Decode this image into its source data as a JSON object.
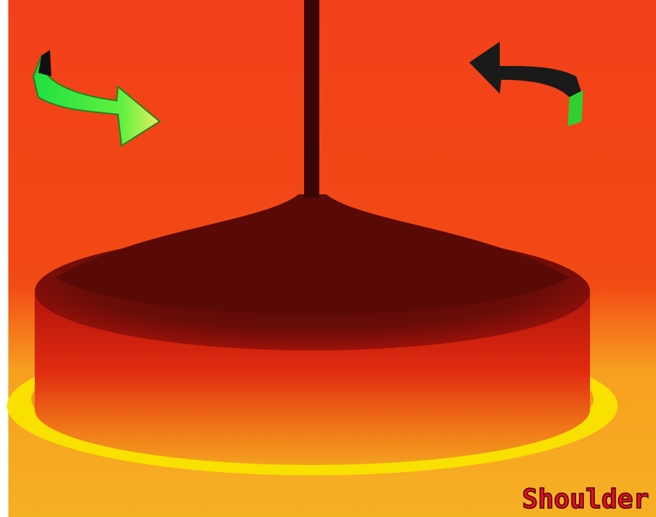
{
  "image": {
    "label": "Shoulder"
  }
}
